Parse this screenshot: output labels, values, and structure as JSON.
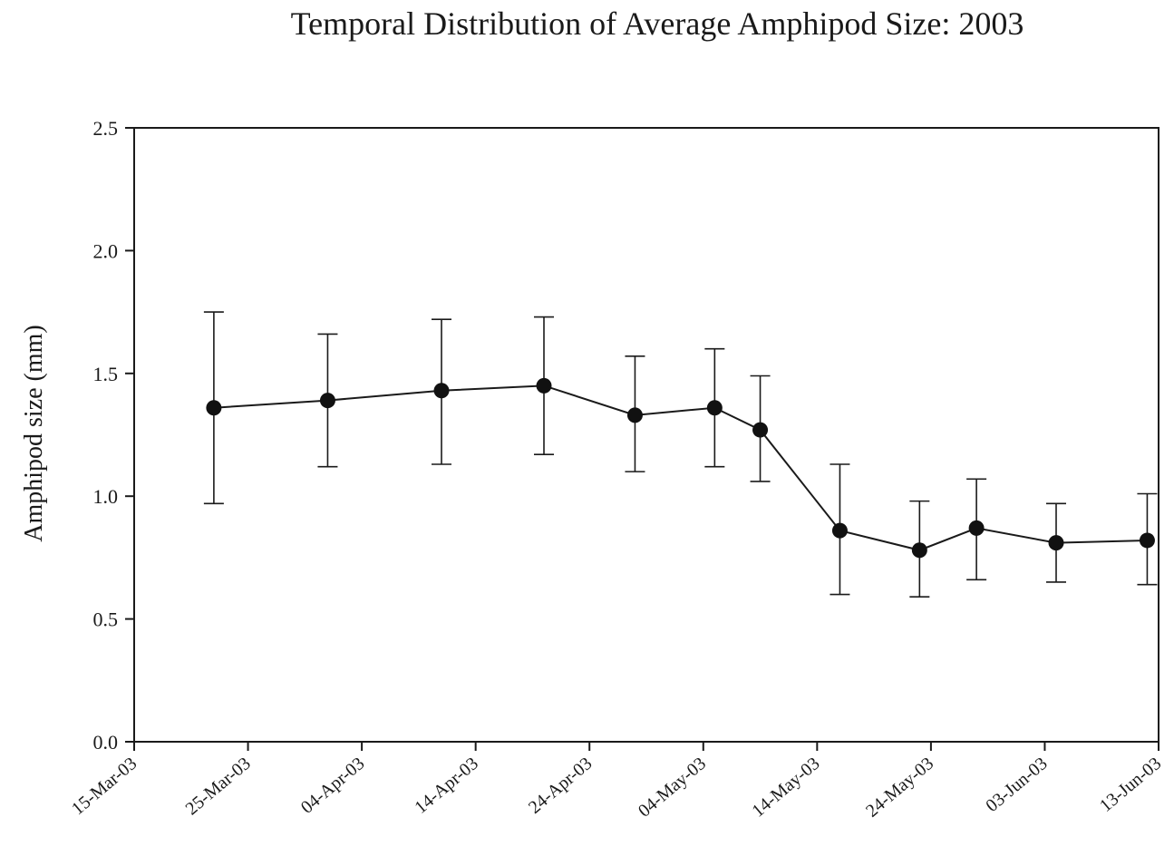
{
  "chart_data": {
    "type": "line",
    "title": "Temporal Distribution of Average Amphipod Size: 2003",
    "xlabel": "",
    "ylabel": "Amphipod size (mm)",
    "xlim": [
      "2003-03-15",
      "2003-06-13"
    ],
    "ylim": [
      0,
      2.5
    ],
    "yticks": [
      0.0,
      0.5,
      1.0,
      1.5,
      2.0,
      2.5
    ],
    "ytick_labels": [
      "0.0",
      "0.5",
      "1.0",
      "1.5",
      "2.0",
      "2.5"
    ],
    "xticks": [
      "2003-03-15",
      "2003-03-25",
      "2003-04-04",
      "2003-04-14",
      "2003-04-24",
      "2003-05-04",
      "2003-05-14",
      "2003-05-24",
      "2003-06-03",
      "2003-06-13"
    ],
    "xtick_labels": [
      "15-Mar-03",
      "25-Mar-03",
      "04-Apr-03",
      "14-Apr-03",
      "24-Apr-03",
      "04-May-03",
      "14-May-03",
      "24-May-03",
      "03-Jun-03",
      "13-Jun-03"
    ],
    "grid": false,
    "legend": "none",
    "colors": {
      "line": "#1a1a1a",
      "marker": "#111111",
      "axis": "#1a1a1a",
      "text": "#1a1a1a"
    },
    "series": [
      {
        "x": [
          "2003-03-22",
          "2003-04-01",
          "2003-04-11",
          "2003-04-20",
          "2003-04-28",
          "2003-05-05",
          "2003-05-09",
          "2003-05-16",
          "2003-05-23",
          "2003-05-28",
          "2003-06-04",
          "2003-06-12"
        ],
        "y": [
          1.36,
          1.39,
          1.43,
          1.45,
          1.33,
          1.36,
          1.27,
          0.86,
          0.78,
          0.87,
          0.81,
          0.82
        ],
        "yerr_low": [
          0.97,
          1.12,
          1.13,
          1.17,
          1.1,
          1.12,
          1.06,
          0.6,
          0.59,
          0.66,
          0.65,
          0.64
        ],
        "yerr_high": [
          1.75,
          1.66,
          1.72,
          1.73,
          1.57,
          1.6,
          1.49,
          1.13,
          0.98,
          1.07,
          0.97,
          1.01
        ]
      }
    ]
  }
}
